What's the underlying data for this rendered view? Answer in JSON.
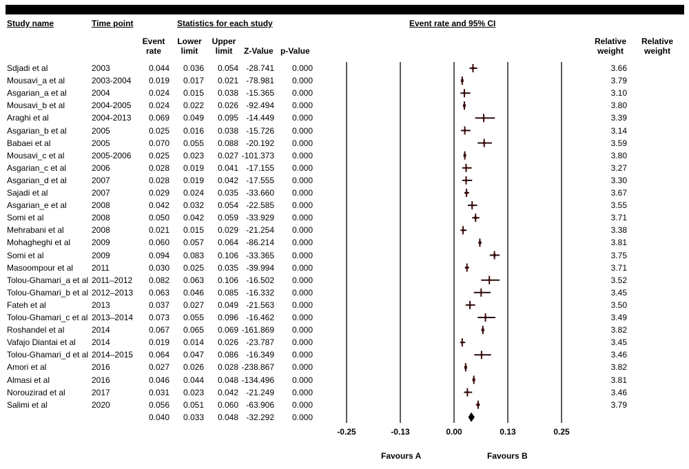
{
  "headers": {
    "study_name": "Study name",
    "time_point": "Time point",
    "stats": "Statistics for each study",
    "ci_title": "Event rate and 95% CI"
  },
  "subheaders": {
    "event_rate": [
      "Event",
      "rate"
    ],
    "lower_limit": [
      "Lower",
      "limit"
    ],
    "upper_limit": [
      "Upper",
      "limit"
    ],
    "z_value": "Z-Value",
    "p_value": "p-Value",
    "rel_weight_1": [
      "Relative",
      "weight"
    ],
    "rel_weight_2": [
      "Relative",
      "weight"
    ]
  },
  "favours": {
    "a": "Favours A",
    "b": "Favours B"
  },
  "chart_data": {
    "type": "forest",
    "xlim": [
      -0.25,
      0.25
    ],
    "x_ticks": [
      "-0.25",
      "-0.13",
      "0.00",
      "0.13",
      "0.25"
    ],
    "x_tick_values": [
      -0.25,
      -0.125,
      0,
      0.125,
      0.25
    ],
    "rows": [
      {
        "study": "Sdjadi et al",
        "time": "2003",
        "rate": "0.044",
        "lower": "0.036",
        "upper": "0.054",
        "z": "-28.741",
        "p": "0.000",
        "weight": "3.66"
      },
      {
        "study": "Mousavi_a et al",
        "time": "2003-2004",
        "rate": "0.019",
        "lower": "0.017",
        "upper": "0.021",
        "z": "-78.981",
        "p": "0.000",
        "weight": "3.79"
      },
      {
        "study": "Asgarian_a et al",
        "time": "2004",
        "rate": "0.024",
        "lower": "0.015",
        "upper": "0.038",
        "z": "-15.365",
        "p": "0.000",
        "weight": "3.10"
      },
      {
        "study": "Mousavi_b et al",
        "time": "2004-2005",
        "rate": "0.024",
        "lower": "0.022",
        "upper": "0.026",
        "z": "-92.494",
        "p": "0.000",
        "weight": "3.80"
      },
      {
        "study": "Araghi et al",
        "time": "2004-2013",
        "rate": "0.069",
        "lower": "0.049",
        "upper": "0.095",
        "z": "-14.449",
        "p": "0.000",
        "weight": "3.39"
      },
      {
        "study": "Asgarian_b et al",
        "time": "2005",
        "rate": "0.025",
        "lower": "0.016",
        "upper": "0.038",
        "z": "-15.726",
        "p": "0.000",
        "weight": "3.14"
      },
      {
        "study": "Babaei et al",
        "time": "2005",
        "rate": "0.070",
        "lower": "0.055",
        "upper": "0.088",
        "z": "-20.192",
        "p": "0.000",
        "weight": "3.59"
      },
      {
        "study": "Mousavi_c et al",
        "time": "2005-2006",
        "rate": "0.025",
        "lower": "0.023",
        "upper": "0.027",
        "z": "-101.373",
        "p": "0.000",
        "weight": "3.80"
      },
      {
        "study": "Asgarian_c et al",
        "time": "2006",
        "rate": "0.028",
        "lower": "0.019",
        "upper": "0.041",
        "z": "-17.155",
        "p": "0.000",
        "weight": "3.27"
      },
      {
        "study": "Asgarian_d et al",
        "time": "2007",
        "rate": "0.028",
        "lower": "0.019",
        "upper": "0.042",
        "z": "-17.555",
        "p": "0.000",
        "weight": "3.30"
      },
      {
        "study": "Sajadi et al",
        "time": "2007",
        "rate": "0.029",
        "lower": "0.024",
        "upper": "0.035",
        "z": "-33.660",
        "p": "0.000",
        "weight": "3.67"
      },
      {
        "study": "Asgarian_e et al",
        "time": "2008",
        "rate": "0.042",
        "lower": "0.032",
        "upper": "0.054",
        "z": "-22.585",
        "p": "0.000",
        "weight": "3.55"
      },
      {
        "study": "Somi et al",
        "time": "2008",
        "rate": "0.050",
        "lower": "0.042",
        "upper": "0.059",
        "z": "-33.929",
        "p": "0.000",
        "weight": "3.71"
      },
      {
        "study": "Mehrabani et al",
        "time": "2008",
        "rate": "0.021",
        "lower": "0.015",
        "upper": "0.029",
        "z": "-21.254",
        "p": "0.000",
        "weight": "3.38"
      },
      {
        "study": "Mohagheghi et al",
        "time": "2009",
        "rate": "0.060",
        "lower": "0.057",
        "upper": "0.064",
        "z": "-86.214",
        "p": "0.000",
        "weight": "3.81"
      },
      {
        "study": "Somi et al",
        "time": "2009",
        "rate": "0.094",
        "lower": "0.083",
        "upper": "0.106",
        "z": "-33.365",
        "p": "0.000",
        "weight": "3.75"
      },
      {
        "study": "Masoompour  et al",
        "time": "2011",
        "rate": "0.030",
        "lower": "0.025",
        "upper": "0.035",
        "z": "-39.994",
        "p": "0.000",
        "weight": "3.71"
      },
      {
        "study": "Tolou-Ghamari_a et al",
        "time": "2011–2012",
        "rate": "0.082",
        "lower": "0.063",
        "upper": "0.106",
        "z": "-16.502",
        "p": "0.000",
        "weight": "3.52"
      },
      {
        "study": "Tolou-Ghamari_b et al",
        "time": "2012–2013",
        "rate": "0.063",
        "lower": "0.046",
        "upper": "0.085",
        "z": "-16.332",
        "p": "0.000",
        "weight": "3.45"
      },
      {
        "study": "Fateh et al",
        "time": "2013",
        "rate": "0.037",
        "lower": "0.027",
        "upper": "0.049",
        "z": "-21.563",
        "p": "0.000",
        "weight": "3.50"
      },
      {
        "study": "Tolou-Ghamari_c et al",
        "time": "2013–2014",
        "rate": "0.073",
        "lower": "0.055",
        "upper": "0.096",
        "z": "-16.462",
        "p": "0.000",
        "weight": "3.49"
      },
      {
        "study": "Roshandel et al",
        "time": "2014",
        "rate": "0.067",
        "lower": "0.065",
        "upper": "0.069",
        "z": "-161.869",
        "p": "0.000",
        "weight": "3.82"
      },
      {
        "study": "Vafajo Diantai et al",
        "time": "2014",
        "rate": "0.019",
        "lower": "0.014",
        "upper": "0.026",
        "z": "-23.787",
        "p": "0.000",
        "weight": "3.45"
      },
      {
        "study": "Tolou-Ghamari_d et al",
        "time": "2014–2015",
        "rate": "0.064",
        "lower": "0.047",
        "upper": "0.086",
        "z": "-16.349",
        "p": "0.000",
        "weight": "3.46"
      },
      {
        "study": "Amori et al",
        "time": "2016",
        "rate": "0.027",
        "lower": "0.026",
        "upper": "0.028",
        "z": "-238.867",
        "p": "0.000",
        "weight": "3.82"
      },
      {
        "study": "Almasi et al",
        "time": "2016",
        "rate": "0.046",
        "lower": "0.044",
        "upper": "0.048",
        "z": "-134.496",
        "p": "0.000",
        "weight": "3.81"
      },
      {
        "study": "Norouzirad et al",
        "time": "2017",
        "rate": "0.031",
        "lower": "0.023",
        "upper": "0.042",
        "z": "-21.249",
        "p": "0.000",
        "weight": "3.46"
      },
      {
        "study": "Salimi et al",
        "time": "2020",
        "rate": "0.056",
        "lower": "0.051",
        "upper": "0.060",
        "z": "-63.906",
        "p": "0.000",
        "weight": "3.79"
      }
    ],
    "summary": {
      "rate": "0.040",
      "lower": "0.033",
      "upper": "0.048",
      "z": "-32.292",
      "p": "0.000"
    }
  }
}
